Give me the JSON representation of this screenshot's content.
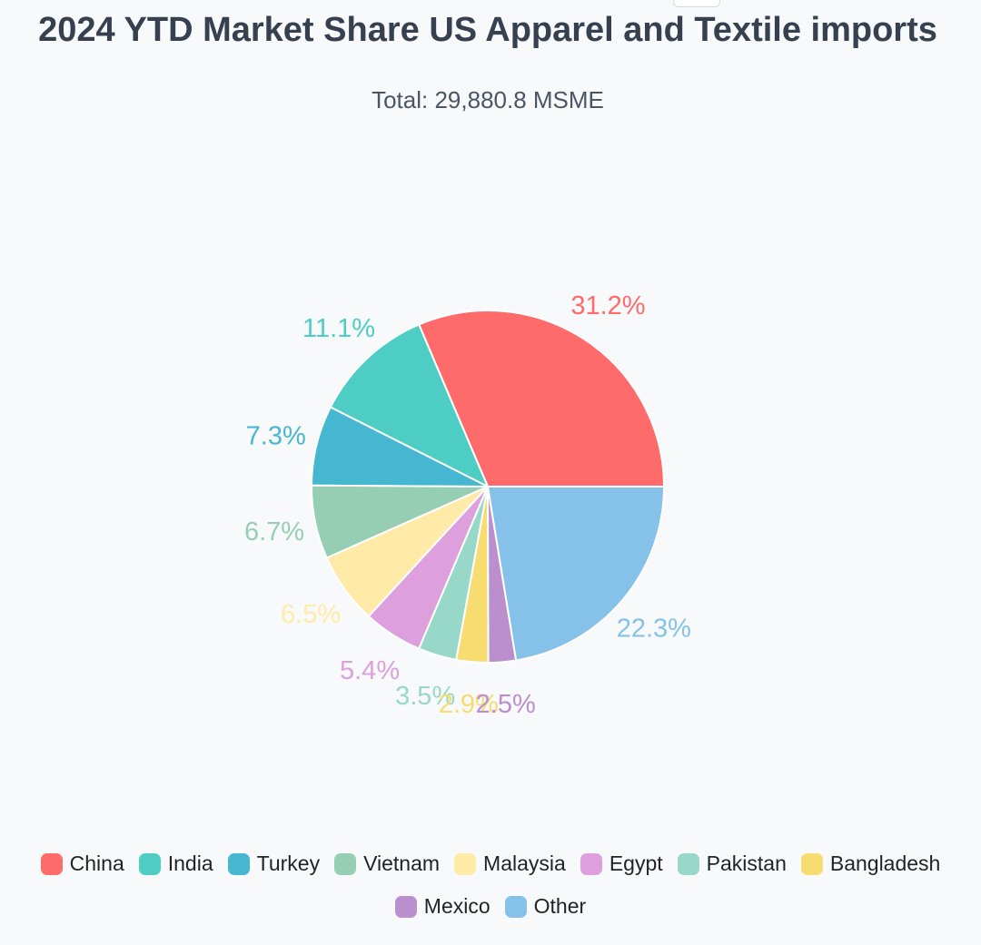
{
  "header": {
    "title": "2024 YTD Market Share US Apparel and Textile imports",
    "subtitle": "Total: 29,880.8 MSME"
  },
  "chart_data": {
    "type": "pie",
    "title": "2024 YTD Market Share US Apparel and Textile imports",
    "subtitle": "Total: 29,880.8 MSME",
    "legend_position": "bottom",
    "start_angle": "right (3 o'clock), counter-clockwise",
    "slices": [
      {
        "name": "China",
        "value": 31.2,
        "label": "31.2%",
        "color": "#ff6b6b"
      },
      {
        "name": "India",
        "value": 11.1,
        "label": "11.1%",
        "color": "#4ecdc4"
      },
      {
        "name": "Turkey",
        "value": 7.3,
        "label": "7.3%",
        "color": "#45b7d1"
      },
      {
        "name": "Vietnam",
        "value": 6.7,
        "label": "6.7%",
        "color": "#96ceb4"
      },
      {
        "name": "Malaysia",
        "value": 6.5,
        "label": "6.5%",
        "color": "#ffeaa7"
      },
      {
        "name": "Egypt",
        "value": 5.4,
        "label": "5.4%",
        "color": "#dda0dd"
      },
      {
        "name": "Pakistan",
        "value": 3.5,
        "label": "3.5%",
        "color": "#98d8c8"
      },
      {
        "name": "Bangladesh",
        "value": 2.9,
        "label": "2.9%",
        "color": "#f7dc6f"
      },
      {
        "name": "Mexico",
        "value": 2.5,
        "label": "2.5%",
        "color": "#bb8fce"
      },
      {
        "name": "Other",
        "value": 22.3,
        "label": "22.3%",
        "color": "#85c1e9"
      }
    ]
  }
}
